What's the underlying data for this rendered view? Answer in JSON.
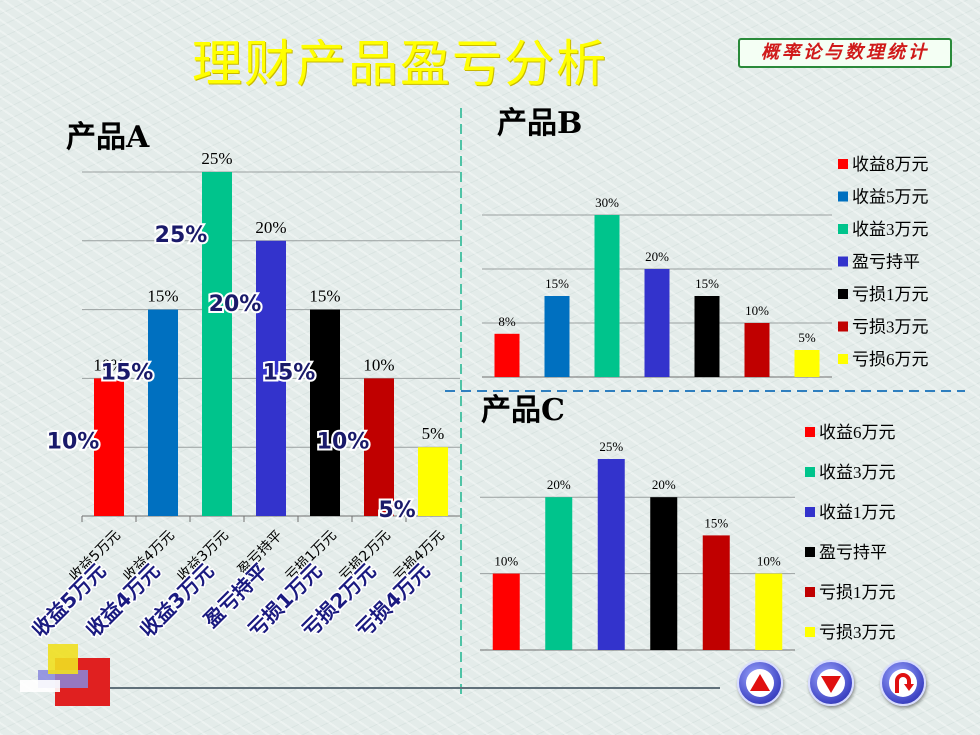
{
  "slide": {
    "title": "理财产品盈亏分析",
    "badge": "概率论与数理统计"
  },
  "colors": {
    "title": "#ffff00",
    "red": "#ff0000",
    "blue": "#0070c0",
    "teal": "#00c48c",
    "indigo": "#3333cc",
    "black": "#000000",
    "darkred": "#c00000",
    "yellow": "#ffff00"
  },
  "chart_data": [
    {
      "title": "产品A",
      "type": "bar",
      "categories": [
        "收益5万元",
        "收益4万元",
        "收益3万元",
        "盈亏持平",
        "亏损1万元",
        "亏损2万元",
        "亏损4万元"
      ],
      "values": [
        10,
        15,
        25,
        20,
        15,
        10,
        5
      ],
      "value_labels": [
        "10%",
        "15%",
        "25%",
        "20%",
        "15%",
        "10%",
        "5%"
      ],
      "bar_colors": [
        "#ff0000",
        "#0070c0",
        "#00c48c",
        "#3333cc",
        "#000000",
        "#c00000",
        "#ffff00"
      ],
      "ylim": [
        0,
        25
      ],
      "grid": true
    },
    {
      "title": "产品B",
      "type": "bar",
      "categories": [
        "收益8万元",
        "收益5万元",
        "收益3万元",
        "盈亏持平",
        "亏损1万元",
        "亏损3万元",
        "亏损6万元"
      ],
      "values": [
        8,
        15,
        30,
        20,
        15,
        10,
        5
      ],
      "value_labels": [
        "8%",
        "15%",
        "30%",
        "20%",
        "15%",
        "10%",
        "5%"
      ],
      "bar_colors": [
        "#ff0000",
        "#0070c0",
        "#00c48c",
        "#3333cc",
        "#000000",
        "#c00000",
        "#ffff00"
      ],
      "ylim": [
        0,
        30
      ],
      "legend": "right",
      "grid": true
    },
    {
      "title": "产品C",
      "type": "bar",
      "categories": [
        "收益6万元",
        "收益3万元",
        "收益1万元",
        "盈亏持平",
        "亏损1万元",
        "亏损3万元"
      ],
      "values": [
        10,
        20,
        25,
        20,
        15,
        10
      ],
      "value_labels": [
        "10%",
        "20%",
        "25%",
        "20%",
        "15%",
        "10%"
      ],
      "bar_colors": [
        "#ff0000",
        "#00c48c",
        "#3333cc",
        "#000000",
        "#c00000",
        "#ffff00"
      ],
      "ylim": [
        0,
        25
      ],
      "legend": "right",
      "grid": true
    }
  ],
  "nav": {
    "icons": [
      "up-arrow-icon",
      "down-arrow-icon",
      "return-icon"
    ]
  }
}
